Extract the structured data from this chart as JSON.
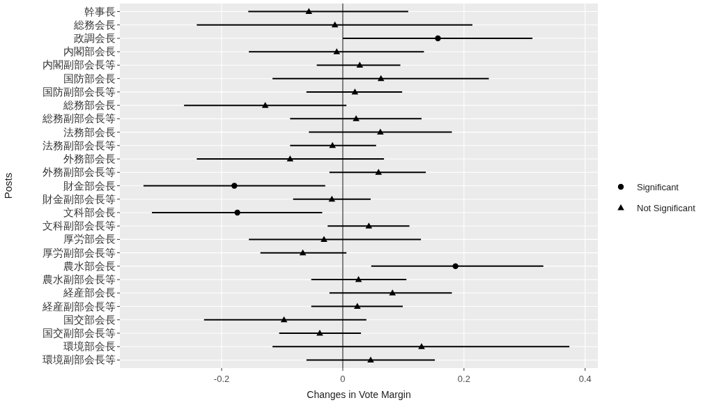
{
  "chart_data": {
    "type": "scatter",
    "orientation": "horizontal",
    "xlabel": "Changes in Vote Margin",
    "ylabel": "Posts",
    "categories": [
      "幹事長",
      "総務会長",
      "政調会長",
      "内閣部会長",
      "内閣副部会長等",
      "国防部会長",
      "国防副部会長等",
      "総務部会長",
      "総務副部会長等",
      "法務部会長",
      "法務副部会長等",
      "外務部会長",
      "外務副部会長等",
      "財金部会長",
      "財金副部会長等",
      "文科部会長",
      "文科副部会長等",
      "厚労部会長",
      "厚労副部会長等",
      "農水部会長",
      "農水副部会長等",
      "経産部会長",
      "経産副部会長等",
      "国交部会長",
      "国交副部会長等",
      "環境部会長",
      "環境副部会長等"
    ],
    "series": [
      {
        "name": "Significant",
        "color": "#000000",
        "marker": "circle",
        "values": [
          null,
          null,
          0.157,
          null,
          null,
          null,
          null,
          null,
          null,
          null,
          null,
          null,
          null,
          -0.179,
          null,
          -0.174,
          null,
          null,
          null,
          0.186,
          null,
          null,
          null,
          null,
          null,
          null,
          null
        ],
        "errors": [
          null,
          null,
          [
            0.0,
            0.313
          ],
          null,
          null,
          null,
          null,
          null,
          null,
          null,
          null,
          null,
          null,
          [
            -0.329,
            -0.029
          ],
          null,
          [
            -0.315,
            -0.034
          ],
          null,
          null,
          null,
          [
            0.047,
            0.331
          ],
          null,
          null,
          null,
          null,
          null,
          null,
          null
        ]
      },
      {
        "name": "Not Significant",
        "color": "#000000",
        "marker": "triangle",
        "values": [
          -0.056,
          -0.013,
          null,
          -0.01,
          0.028,
          0.063,
          0.02,
          -0.128,
          0.022,
          0.062,
          -0.017,
          -0.087,
          0.059,
          null,
          -0.018,
          null,
          0.043,
          -0.031,
          -0.066,
          null,
          0.026,
          0.082,
          0.024,
          -0.097,
          -0.038,
          0.13,
          0.046
        ],
        "errors": [
          [
            -0.156,
            0.108
          ],
          [
            -0.241,
            0.214
          ],
          null,
          [
            -0.155,
            0.134
          ],
          [
            -0.043,
            0.095
          ],
          [
            -0.116,
            0.241
          ],
          [
            -0.06,
            0.098
          ],
          [
            -0.262,
            0.006
          ],
          [
            -0.087,
            0.13
          ],
          [
            -0.056,
            0.18
          ],
          [
            -0.087,
            0.055
          ],
          [
            -0.241,
            0.068
          ],
          [
            -0.022,
            0.137
          ],
          null,
          [
            -0.082,
            0.046
          ],
          null,
          [
            -0.025,
            0.11
          ],
          [
            -0.155,
            0.129
          ],
          [
            -0.136,
            0.006
          ],
          null,
          [
            -0.052,
            0.105
          ],
          [
            -0.022,
            0.18
          ],
          [
            -0.052,
            0.099
          ],
          [
            -0.229,
            0.039
          ],
          [
            -0.105,
            0.03
          ],
          [
            -0.116,
            0.374
          ],
          [
            -0.06,
            0.152
          ]
        ]
      }
    ],
    "xlim": [
      -0.368,
      0.421
    ],
    "xticks": [
      -0.2,
      0,
      0.2,
      0.4
    ],
    "ref_lines": [
      {
        "axis": "x",
        "value": 0,
        "color": "#4d4d4d"
      }
    ],
    "grid": true,
    "legend": "right"
  }
}
